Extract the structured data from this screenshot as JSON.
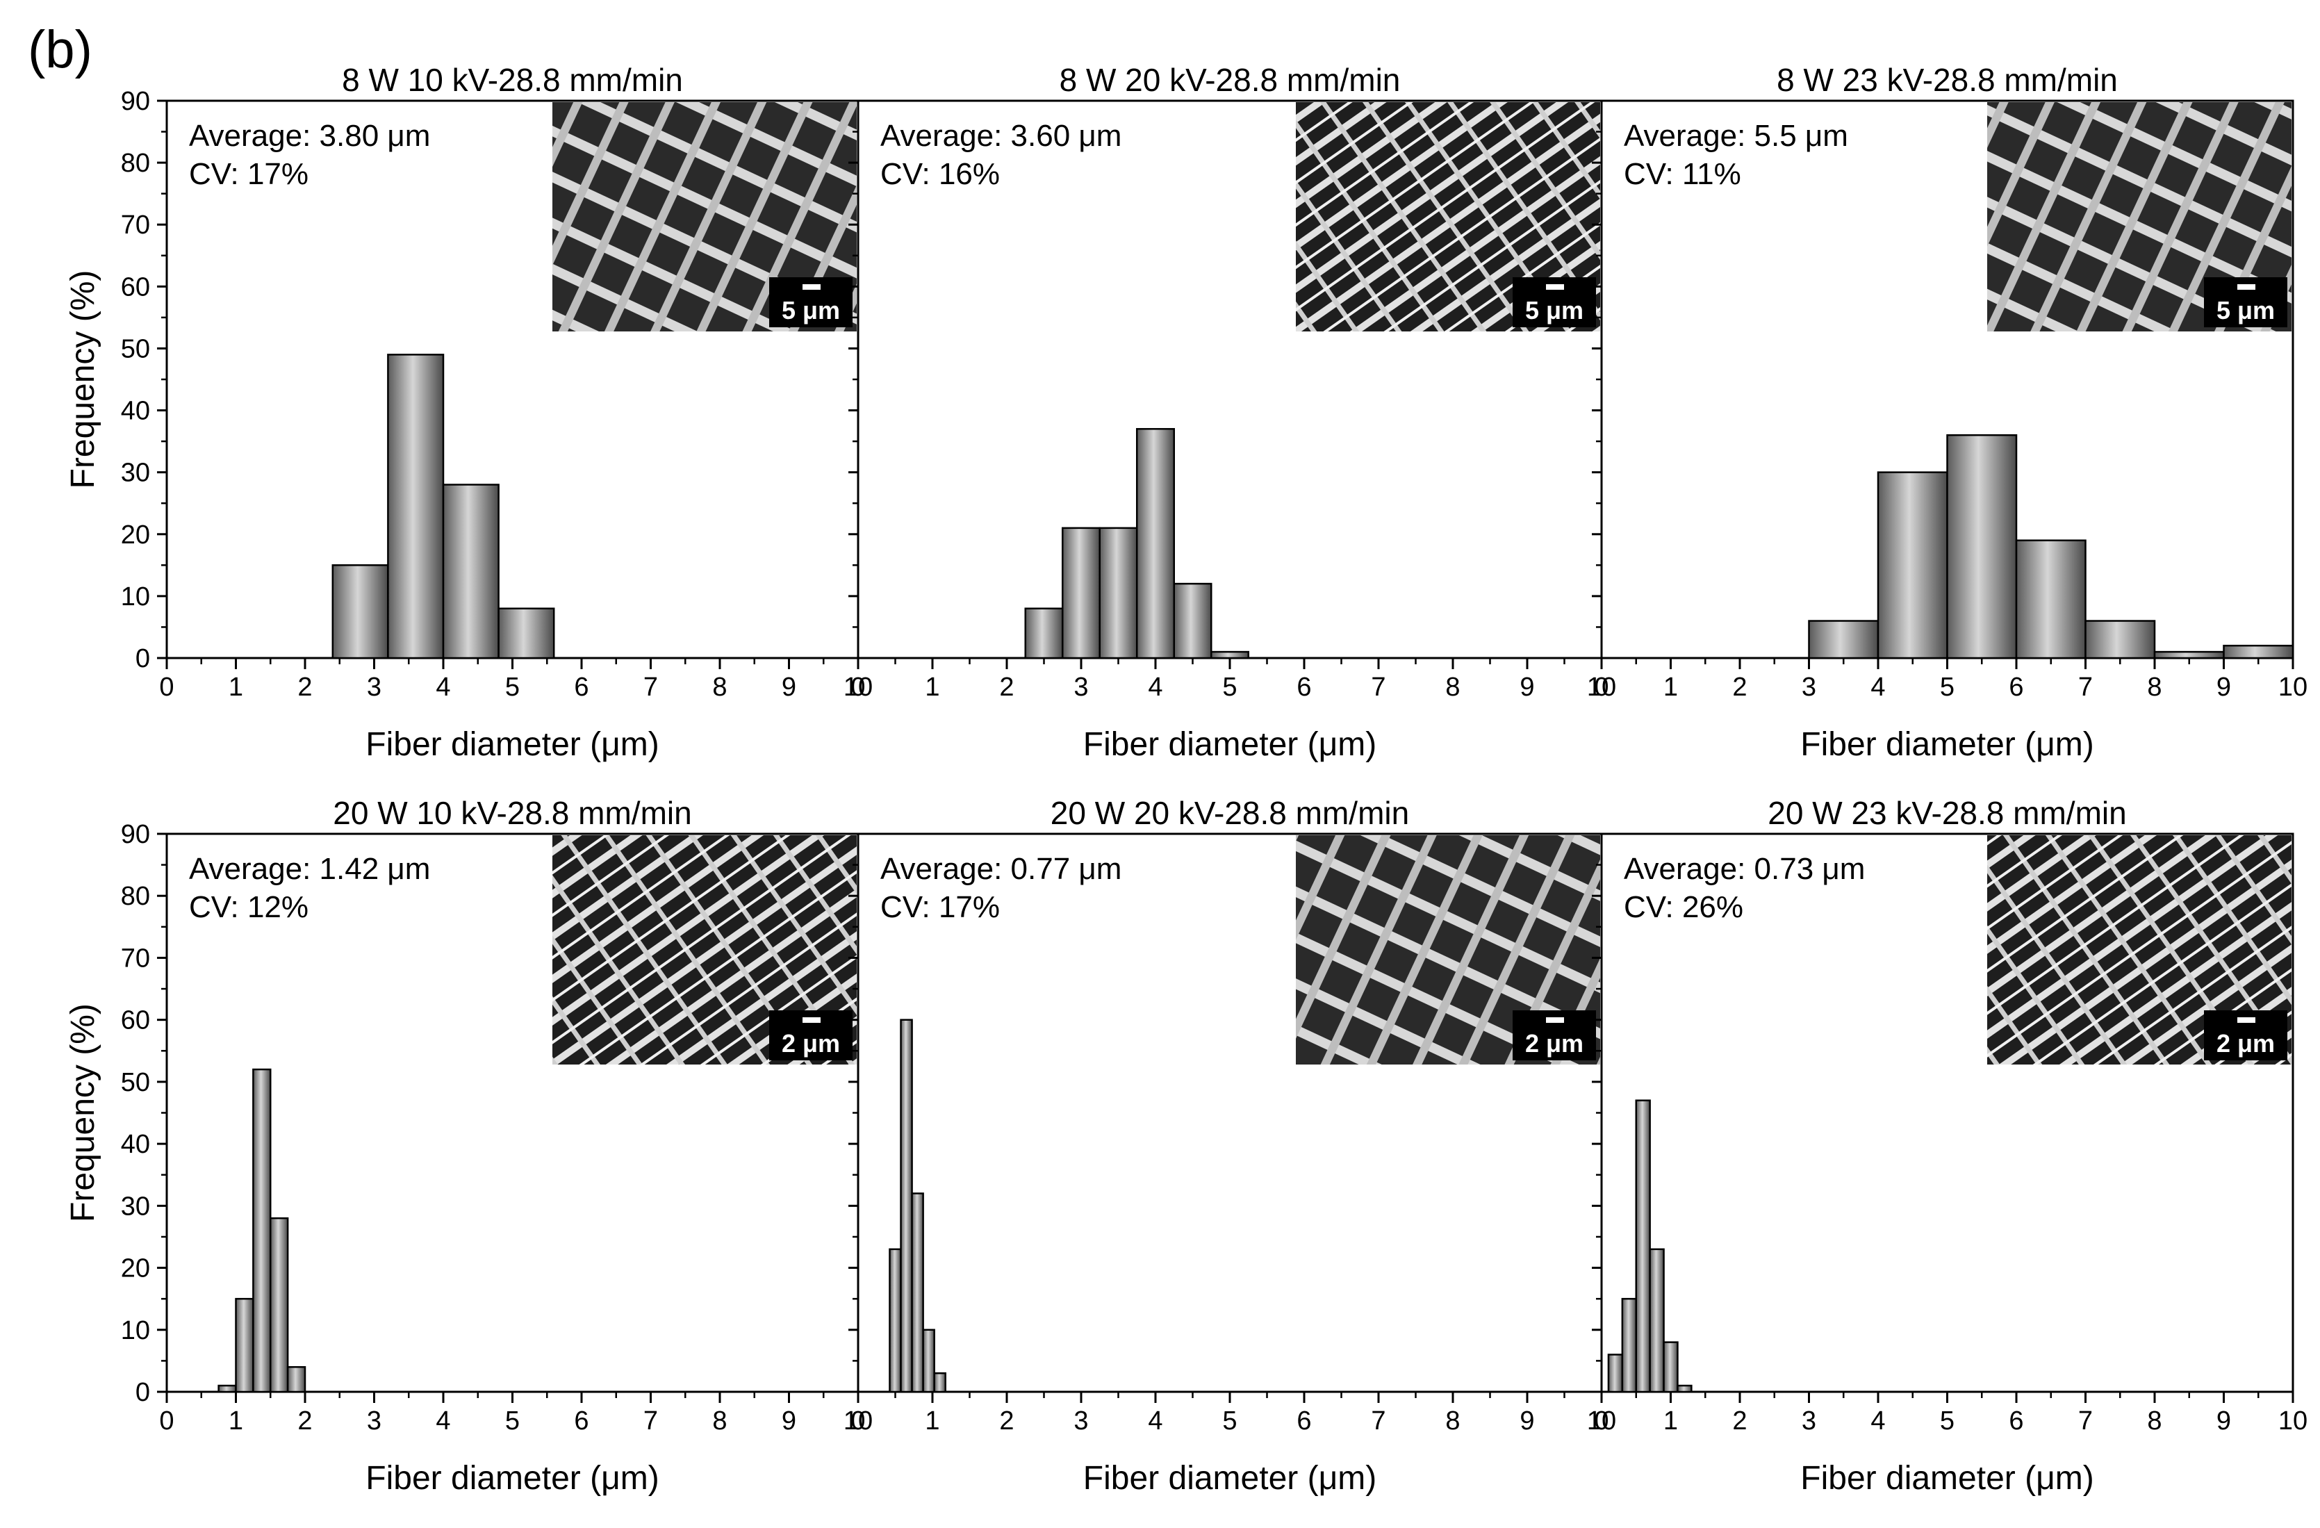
{
  "panel_label": "(b)",
  "axis_text": {
    "ylabel": "Frequency (%)",
    "xlabel": "Fiber diameter (μm)"
  },
  "chart_data": [
    {
      "type": "bar",
      "title": "8 W 10 kV-28.8 mm/min",
      "stats": {
        "average": "Average: 3.80 μm",
        "cv": "CV: 17%"
      },
      "scale_bar": "5 μm",
      "xlim": [
        0,
        10
      ],
      "ylim": [
        0,
        90
      ],
      "xticks": [
        "0",
        "1",
        "2",
        "3",
        "4",
        "5",
        "6",
        "7",
        "8",
        "9",
        "10"
      ],
      "yticks": [
        "0",
        "10",
        "20",
        "30",
        "40",
        "50",
        "60",
        "70",
        "80",
        "90"
      ],
      "bin_width": 0.8,
      "x": [
        2.8,
        3.6,
        4.4,
        5.2
      ],
      "values": [
        15,
        49,
        28,
        8
      ]
    },
    {
      "type": "bar",
      "title": "8 W 20 kV-28.8 mm/min",
      "stats": {
        "average": "Average: 3.60 μm",
        "cv": "CV: 16%"
      },
      "scale_bar": "5 μm",
      "xlim": [
        0,
        10
      ],
      "ylim": [
        0,
        90
      ],
      "xticks": [
        "0",
        "1",
        "2",
        "3",
        "4",
        "5",
        "6",
        "7",
        "8",
        "9",
        "10"
      ],
      "yticks": [
        "0",
        "10",
        "20",
        "30",
        "40",
        "50",
        "60",
        "70",
        "80",
        "90"
      ],
      "bin_width": 0.5,
      "x": [
        2.5,
        3.0,
        3.5,
        4.0,
        4.5,
        5.0
      ],
      "values": [
        8,
        21,
        21,
        37,
        12,
        1
      ]
    },
    {
      "type": "bar",
      "title": "8 W 23 kV-28.8 mm/min",
      "stats": {
        "average": "Average: 5.5 μm",
        "cv": "CV: 11%"
      },
      "scale_bar": "5 μm",
      "xlim": [
        0,
        10
      ],
      "ylim": [
        0,
        90
      ],
      "xticks": [
        "0",
        "1",
        "2",
        "3",
        "4",
        "5",
        "6",
        "7",
        "8",
        "9",
        "10"
      ],
      "yticks": [
        "0",
        "10",
        "20",
        "30",
        "40",
        "50",
        "60",
        "70",
        "80",
        "90"
      ],
      "bin_width": 1.0,
      "x": [
        3.5,
        4.5,
        5.5,
        6.5,
        7.5,
        8.5,
        9.5
      ],
      "values": [
        6,
        30,
        36,
        19,
        6,
        1,
        2
      ]
    },
    {
      "type": "bar",
      "title": "20 W 10 kV-28.8 mm/min",
      "stats": {
        "average": "Average: 1.42 μm",
        "cv": "CV: 12%"
      },
      "scale_bar": "2 μm",
      "xlim": [
        0,
        10
      ],
      "ylim": [
        0,
        90
      ],
      "xticks": [
        "0",
        "1",
        "2",
        "3",
        "4",
        "5",
        "6",
        "7",
        "8",
        "9",
        "10"
      ],
      "yticks": [
        "0",
        "10",
        "20",
        "30",
        "40",
        "50",
        "60",
        "70",
        "80",
        "90"
      ],
      "bin_width": 0.25,
      "x": [
        0.875,
        1.125,
        1.375,
        1.625,
        1.875
      ],
      "values": [
        1,
        15,
        52,
        28,
        4
      ]
    },
    {
      "type": "bar",
      "title": "20 W 20 kV-28.8 mm/min",
      "stats": {
        "average": "Average: 0.77 μm",
        "cv": "CV: 17%"
      },
      "scale_bar": "2 μm",
      "xlim": [
        0,
        10
      ],
      "ylim": [
        0,
        90
      ],
      "xticks": [
        "0",
        "1",
        "2",
        "3",
        "4",
        "5",
        "6",
        "7",
        "8",
        "9",
        "10"
      ],
      "yticks": [
        "0",
        "10",
        "20",
        "30",
        "40",
        "50",
        "60",
        "70",
        "80",
        "90"
      ],
      "bin_width": 0.15,
      "x": [
        0.5,
        0.65,
        0.8,
        0.95,
        1.1
      ],
      "values": [
        23,
        60,
        32,
        10,
        3
      ]
    },
    {
      "type": "bar",
      "title": "20 W 23 kV-28.8 mm/min",
      "stats": {
        "average": "Average: 0.73 μm",
        "cv": "CV: 26%"
      },
      "scale_bar": "2 μm",
      "xlim": [
        0,
        10
      ],
      "ylim": [
        0,
        90
      ],
      "xticks": [
        "0",
        "1",
        "2",
        "3",
        "4",
        "5",
        "6",
        "7",
        "8",
        "9",
        "10"
      ],
      "yticks": [
        "0",
        "10",
        "20",
        "30",
        "40",
        "50",
        "60",
        "70",
        "80",
        "90"
      ],
      "bin_width": 0.2,
      "x": [
        0.2,
        0.4,
        0.6,
        0.8,
        1.0,
        1.2
      ],
      "values": [
        6,
        15,
        47,
        23,
        8,
        1
      ]
    }
  ]
}
